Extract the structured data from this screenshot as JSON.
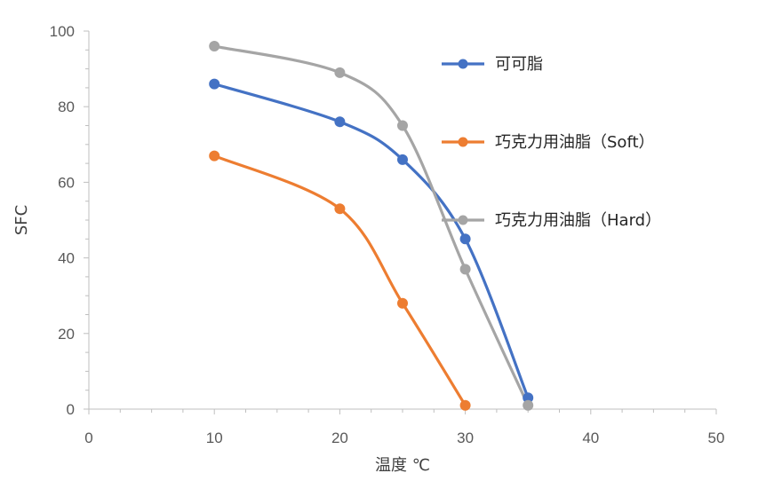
{
  "chart_data": {
    "type": "line",
    "xlabel": "温度 ℃",
    "ylabel": "SFC",
    "xlim": [
      0,
      50
    ],
    "ylim": [
      0,
      100
    ],
    "xticks": [
      0,
      10,
      20,
      30,
      40,
      50
    ],
    "yticks": [
      0,
      20,
      40,
      60,
      80,
      100
    ],
    "grid": false,
    "legend_position": "right",
    "smooth": true,
    "series": [
      {
        "name": "可可脂",
        "color": "#4472C4",
        "x": [
          10,
          20,
          25,
          30,
          35
        ],
        "y": [
          86,
          76,
          66,
          45,
          3
        ]
      },
      {
        "name": "巧克力用油脂（Soft）",
        "color": "#ED7D31",
        "x": [
          10,
          20,
          25,
          30
        ],
        "y": [
          67,
          53,
          28,
          1
        ]
      },
      {
        "name": "巧克力用油脂（Hard）",
        "color": "#A5A5A5",
        "x": [
          10,
          20,
          25,
          30,
          35
        ],
        "y": [
          96,
          89,
          75,
          37,
          1
        ]
      }
    ]
  }
}
